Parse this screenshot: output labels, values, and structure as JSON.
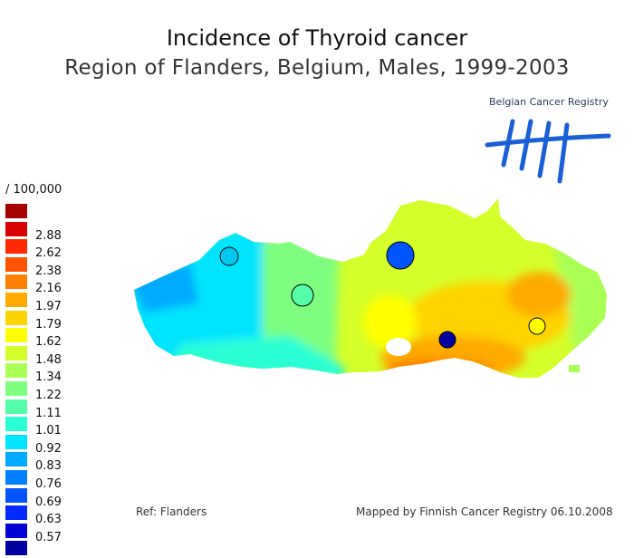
{
  "title": "Incidence of Thyroid cancer",
  "subtitle": "Region of Flanders, Belgium, Males, 1999-2003",
  "logo": {
    "text": "Belgian Cancer Registry",
    "mark_color": "#1a5fd6"
  },
  "legend": {
    "unit": "/ 100,000",
    "entries": [
      {
        "color": "#a50000",
        "label": ""
      },
      {
        "color": "#d80000",
        "label": "2.88"
      },
      {
        "color": "#ff2a00",
        "label": "2.62"
      },
      {
        "color": "#ff5500",
        "label": "2.38"
      },
      {
        "color": "#ff7f00",
        "label": "2.16"
      },
      {
        "color": "#ffaa00",
        "label": "1.97"
      },
      {
        "color": "#ffd400",
        "label": "1.79"
      },
      {
        "color": "#ffff00",
        "label": "1.62"
      },
      {
        "color": "#d4ff2a",
        "label": "1.48"
      },
      {
        "color": "#aaff55",
        "label": "1.34"
      },
      {
        "color": "#7fff7f",
        "label": "1.22"
      },
      {
        "color": "#55ffaa",
        "label": "1.11"
      },
      {
        "color": "#2affd4",
        "label": "1.01"
      },
      {
        "color": "#00e5ff",
        "label": "0.92"
      },
      {
        "color": "#00aaff",
        "label": "0.83"
      },
      {
        "color": "#007fff",
        "label": "0.76"
      },
      {
        "color": "#0055ff",
        "label": "0.69"
      },
      {
        "color": "#002aff",
        "label": "0.63"
      },
      {
        "color": "#0000d4",
        "label": "0.57"
      },
      {
        "color": "#0000a0",
        "label": ""
      }
    ]
  },
  "markers": [
    {
      "region": "west",
      "color": "#00c8f0"
    },
    {
      "region": "central-west",
      "color": "#55ffaa"
    },
    {
      "region": "north",
      "color": "#0055ff"
    },
    {
      "region": "south",
      "color": "#0000a0"
    },
    {
      "region": "east",
      "color": "#ffff00"
    }
  ],
  "footer": {
    "ref": "Ref: Flanders",
    "mapped": "Mapped by Finnish Cancer Registry 06.10.2008"
  }
}
